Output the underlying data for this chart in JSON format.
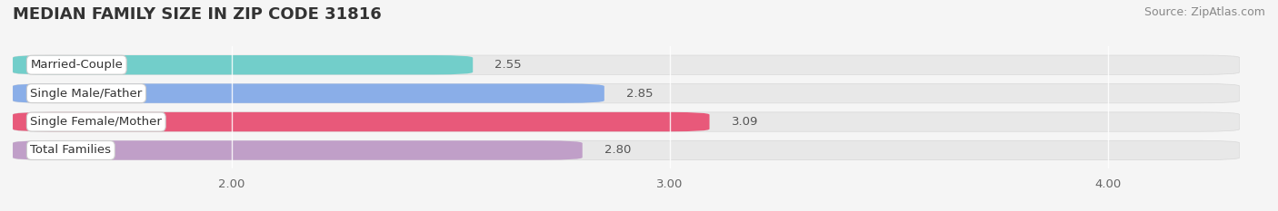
{
  "title": "MEDIAN FAMILY SIZE IN ZIP CODE 31816",
  "source": "Source: ZipAtlas.com",
  "categories": [
    "Married-Couple",
    "Single Male/Father",
    "Single Female/Mother",
    "Total Families"
  ],
  "values": [
    2.55,
    2.85,
    3.09,
    2.8
  ],
  "bar_colors": [
    "#72ceca",
    "#8aaee8",
    "#e8597a",
    "#c09fc8"
  ],
  "xlim_left": 1.5,
  "xlim_right": 4.3,
  "xticks": [
    2.0,
    3.0,
    4.0
  ],
  "background_color": "#f5f5f5",
  "bar_bg_color": "#e8e8e8",
  "title_fontsize": 13,
  "source_fontsize": 9,
  "bar_label_fontsize": 9.5,
  "category_fontsize": 9.5,
  "bar_height": 0.68
}
